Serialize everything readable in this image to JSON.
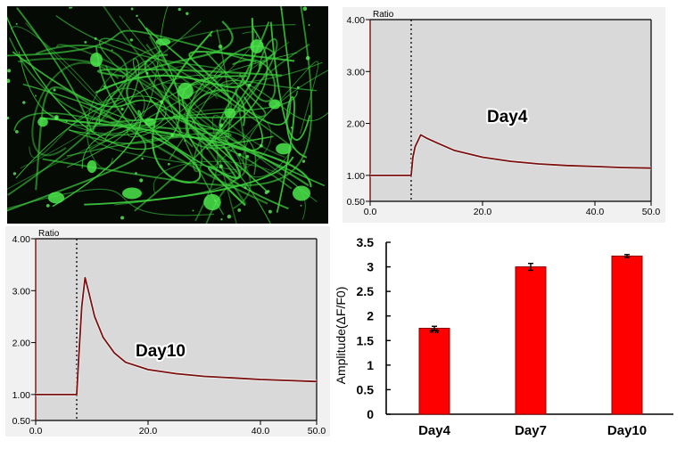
{
  "panels": {
    "microscopy": {
      "description": "Green fluorescent neuronal network image",
      "colors": {
        "background": "#050a05",
        "signal": "#3fd23f"
      }
    },
    "day4_trace": {
      "label": "Day4",
      "y_title": "Ratio"
    },
    "day10_trace": {
      "label": "Day10",
      "y_title": "Ratio"
    },
    "bar_chart": {
      "ylabel": "Amplitude(ΔF/F0)"
    }
  },
  "chart_data": [
    {
      "type": "line",
      "title": "Day4",
      "ylabel": "Ratio",
      "xlabel": "",
      "xlim": [
        0,
        50
      ],
      "ylim": [
        0.5,
        4.0
      ],
      "x_ticks": [
        "0.0",
        "20.0",
        "40.0",
        "50.0"
      ],
      "y_ticks": [
        "0.50",
        "1.00",
        "2.00",
        "3.00",
        "4.00"
      ],
      "stimulus_marker_x": 7.3,
      "series": [
        {
          "name": "Day4 ratio",
          "color": "#7a1010",
          "x": [
            0,
            7.3,
            7.6,
            8.0,
            9.0,
            10.0,
            12.0,
            15.0,
            20.0,
            25.0,
            30.0,
            35.0,
            40.0,
            45.0,
            50.0
          ],
          "y": [
            1.0,
            1.0,
            1.35,
            1.55,
            1.78,
            1.72,
            1.62,
            1.48,
            1.35,
            1.27,
            1.22,
            1.19,
            1.17,
            1.15,
            1.14
          ]
        }
      ],
      "grid": false,
      "background": "#d9d9d9"
    },
    {
      "type": "line",
      "title": "Day10",
      "ylabel": "Ratio",
      "xlabel": "",
      "xlim": [
        0,
        50
      ],
      "ylim": [
        0.5,
        4.0
      ],
      "x_ticks": [
        "0.0",
        "20.0",
        "40.0",
        "50.0"
      ],
      "y_ticks": [
        "0.50",
        "1.00",
        "2.00",
        "3.00",
        "4.00"
      ],
      "stimulus_marker_x": 7.3,
      "series": [
        {
          "name": "Day10 ratio",
          "color": "#7a1010",
          "x": [
            0,
            7.3,
            7.6,
            8.2,
            8.8,
            9.5,
            10.5,
            12.0,
            14.0,
            16.0,
            20.0,
            25.0,
            30.0,
            35.0,
            40.0,
            45.0,
            50.0
          ],
          "y": [
            1.0,
            1.0,
            1.6,
            2.7,
            3.25,
            2.95,
            2.5,
            2.1,
            1.8,
            1.62,
            1.48,
            1.4,
            1.35,
            1.32,
            1.29,
            1.27,
            1.25
          ]
        }
      ],
      "grid": false,
      "background": "#d9d9d9"
    },
    {
      "type": "bar",
      "title": "",
      "xlabel": "",
      "ylabel": "Amplitude(ΔF/F0)",
      "categories": [
        "Day4",
        "Day7",
        "Day10"
      ],
      "values": [
        1.75,
        3.0,
        3.22
      ],
      "errors": [
        0.04,
        0.07,
        0.03
      ],
      "annotations": [
        {
          "category": "Day4",
          "text": "**"
        }
      ],
      "ylim": [
        0,
        3.5
      ],
      "y_ticks": [
        "0",
        "0.5",
        "1",
        "1.5",
        "2",
        "2.5",
        "3",
        "3.5"
      ],
      "bar_color": "#ff0000",
      "grid": false,
      "legend": "none"
    }
  ]
}
